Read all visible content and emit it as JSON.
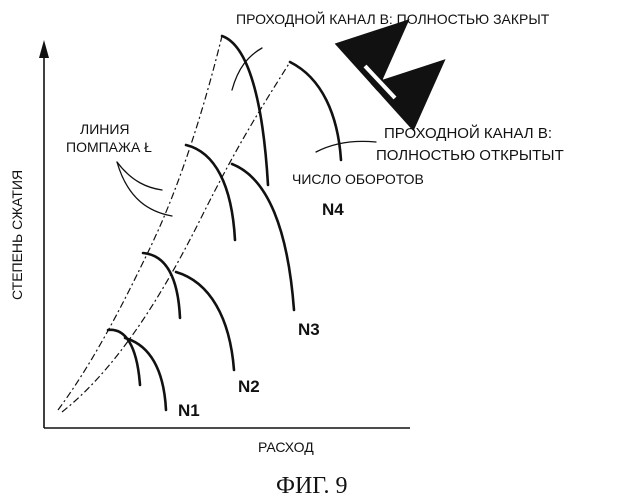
{
  "labels": {
    "closed": "ПРОХОДНОЙ КАНАЛ В:  ПОЛНОСТЬЮ  ЗАКРЫТ",
    "open_line1": "ПРОХОДНОЙ КАНАЛ В:",
    "open_line2": "ПОЛНОСТЬЮ  ОТКРЫТЫТ",
    "speed": "ЧИСЛО ОБОРОТОВ",
    "surge_line1": "ЛИНИЯ",
    "surge_line2": "ПОМПАЖА Ł"
  },
  "axes": {
    "y_label": "СТЕПЕНЬ СЖАТИЯ",
    "x_label": "РАСХОД"
  },
  "speed_lines": [
    "N1",
    "N2",
    "N3",
    "N4"
  ],
  "caption": "ФИГ. 9"
}
